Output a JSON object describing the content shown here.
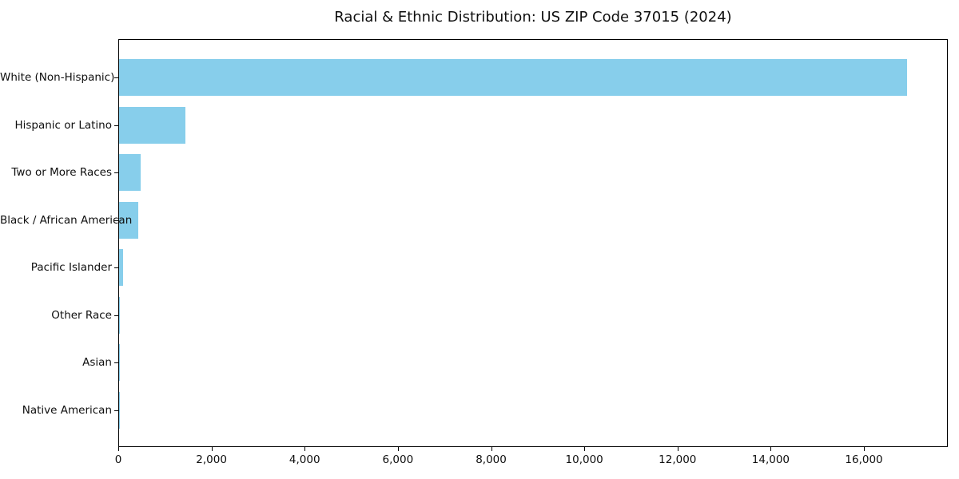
{
  "title": "Racial & Ethnic Distribution: US ZIP Code 37015 (2024)",
  "colors": {
    "bar": "#87CEEB",
    "axis": "#000000",
    "background": "#FFFFFF",
    "text": "#0F0F0F"
  },
  "chart_data": {
    "type": "bar",
    "orientation": "horizontal",
    "title": "Racial & Ethnic Distribution: US ZIP Code 37015 (2024)",
    "xlabel": "",
    "ylabel": "",
    "categories": [
      "White (Non-Hispanic)",
      "Hispanic or Latino",
      "Two or More Races",
      "Black / African American",
      "Pacific Islander",
      "Other Race",
      "Asian",
      "Native American"
    ],
    "values": [
      16900,
      1420,
      460,
      420,
      85,
      20,
      8,
      3
    ],
    "xlim": [
      0,
      17800
    ],
    "xticks": [
      0,
      2000,
      4000,
      6000,
      8000,
      10000,
      12000,
      14000,
      16000
    ],
    "xtick_labels": [
      "0",
      "2,000",
      "4,000",
      "6,000",
      "8,000",
      "10,000",
      "12,000",
      "14,000",
      "16,000"
    ],
    "grid": false,
    "legend": "none",
    "bar_color": "#87CEEB"
  }
}
